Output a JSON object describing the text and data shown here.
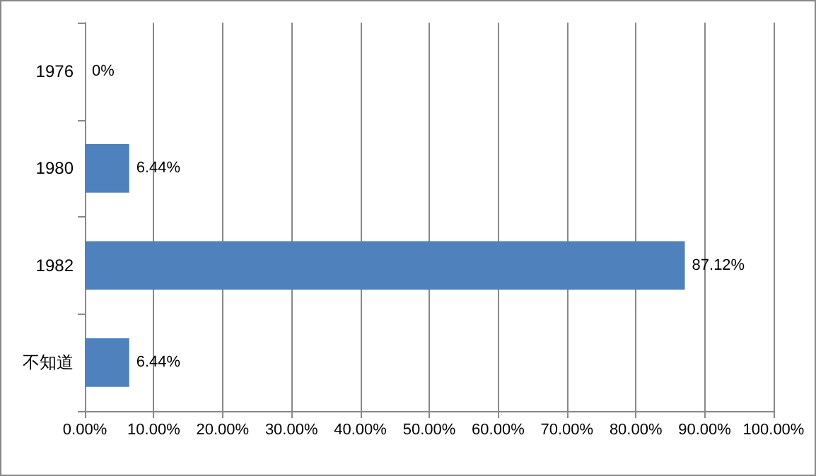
{
  "chart_data": {
    "type": "bar",
    "orientation": "horizontal",
    "categories": [
      "1976",
      "1980",
      "1982",
      "不知道"
    ],
    "values": [
      0,
      6.44,
      87.12,
      6.44
    ],
    "value_labels": [
      "0%",
      "6.44%",
      "87.12%",
      "6.44%"
    ],
    "color": "#4f81bd",
    "xlim": [
      0,
      100
    ],
    "xticks": [
      {
        "value": 0,
        "label": "0.00%"
      },
      {
        "value": 10,
        "label": "10.00%"
      },
      {
        "value": 20,
        "label": "20.00%"
      },
      {
        "value": 30,
        "label": "30.00%"
      },
      {
        "value": 40,
        "label": "40.00%"
      },
      {
        "value": 50,
        "label": "50.00%"
      },
      {
        "value": 60,
        "label": "60.00%"
      },
      {
        "value": 70,
        "label": "70.00%"
      },
      {
        "value": 80,
        "label": "80.00%"
      },
      {
        "value": 90,
        "label": "90.00%"
      },
      {
        "value": 100,
        "label": "100.00%"
      }
    ],
    "grid": "x"
  }
}
